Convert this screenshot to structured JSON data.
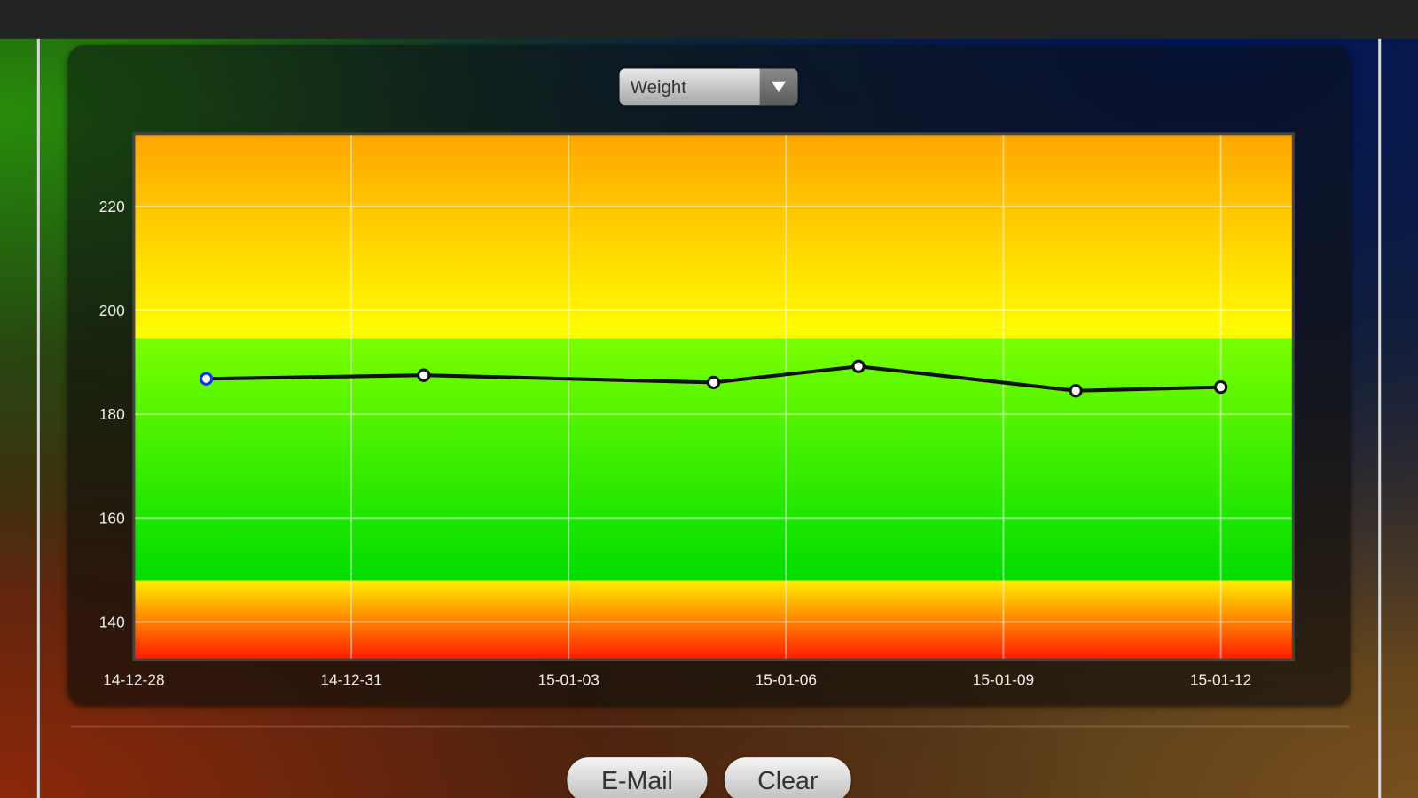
{
  "selector": {
    "selected": "Weight"
  },
  "buttons": {
    "email": "E-Mail",
    "clear": "Clear"
  },
  "chart_data": {
    "type": "line",
    "title": "",
    "xlabel": "",
    "ylabel": "",
    "x_ticks": [
      "14-12-28",
      "14-12-31",
      "15-01-03",
      "15-01-06",
      "15-01-09",
      "15-01-12"
    ],
    "y_ticks": [
      140,
      160,
      180,
      200,
      220
    ],
    "xlim": [
      "2014-12-28",
      "2015-01-13"
    ],
    "ylim": [
      132.7,
      234
    ],
    "grid": true,
    "x": [
      "2014-12-29",
      "2015-01-01",
      "2015-01-05",
      "2015-01-07",
      "2015-01-10",
      "2015-01-12"
    ],
    "values": [
      186.8,
      187.5,
      186.1,
      189.2,
      184.5,
      185.2
    ],
    "highlighted_point_index": 0,
    "bands": [
      {
        "from": 132.7,
        "to": 148,
        "colors": [
          "#ff1a00",
          "#ffee00"
        ]
      },
      {
        "from": 148,
        "to": 194.6,
        "colors": [
          "#00dd00",
          "#7aff00"
        ]
      },
      {
        "from": 194.6,
        "to": 234,
        "colors": [
          "#ffff00",
          "#ffa500"
        ]
      }
    ],
    "line_color": "#111111",
    "highlight_color": "#1030ff"
  }
}
